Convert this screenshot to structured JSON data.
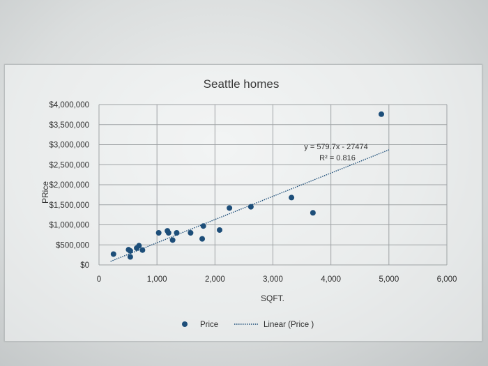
{
  "chart_data": {
    "type": "scatter",
    "title": "Seattle homes",
    "xlabel": "SQFT.",
    "ylabel": "PRice",
    "xlim": [
      0,
      6000
    ],
    "ylim": [
      0,
      4000000
    ],
    "x_ticks": [
      0,
      1000,
      2000,
      3000,
      4000,
      5000,
      6000
    ],
    "x_tick_labels": [
      "0",
      "1,000",
      "2,000",
      "3,000",
      "4,000",
      "5,000",
      "6,000"
    ],
    "y_ticks": [
      0,
      500000,
      1000000,
      1500000,
      2000000,
      2500000,
      3000000,
      3500000,
      4000000
    ],
    "y_tick_labels": [
      "$0",
      "$500,000",
      "$1,000,000",
      "$1,500,000",
      "$2,000,000",
      "$2,500,000",
      "$3,000,000",
      "$3,500,000",
      "$4,000,000"
    ],
    "grid": true,
    "legend_position": "bottom",
    "series": [
      {
        "name": "Price",
        "color": "#1d4e79",
        "points": [
          [
            250,
            270000
          ],
          [
            510,
            380000
          ],
          [
            540,
            350000
          ],
          [
            540,
            200000
          ],
          [
            650,
            420000
          ],
          [
            690,
            480000
          ],
          [
            750,
            370000
          ],
          [
            1030,
            800000
          ],
          [
            1180,
            850000
          ],
          [
            1200,
            800000
          ],
          [
            1270,
            620000
          ],
          [
            1340,
            800000
          ],
          [
            1580,
            800000
          ],
          [
            1780,
            650000
          ],
          [
            1800,
            970000
          ],
          [
            2080,
            870000
          ],
          [
            2250,
            1420000
          ],
          [
            2620,
            1450000
          ],
          [
            3320,
            1680000
          ],
          [
            3690,
            1300000
          ],
          [
            4870,
            3760000
          ]
        ]
      }
    ],
    "trendline": {
      "name": "Linear (Price )",
      "slope": 579.7,
      "intercept": -27474,
      "equation": "y = 579.7x - 27474",
      "r2": "R² = 0.816",
      "x_range": [
        200,
        5000
      ]
    }
  }
}
